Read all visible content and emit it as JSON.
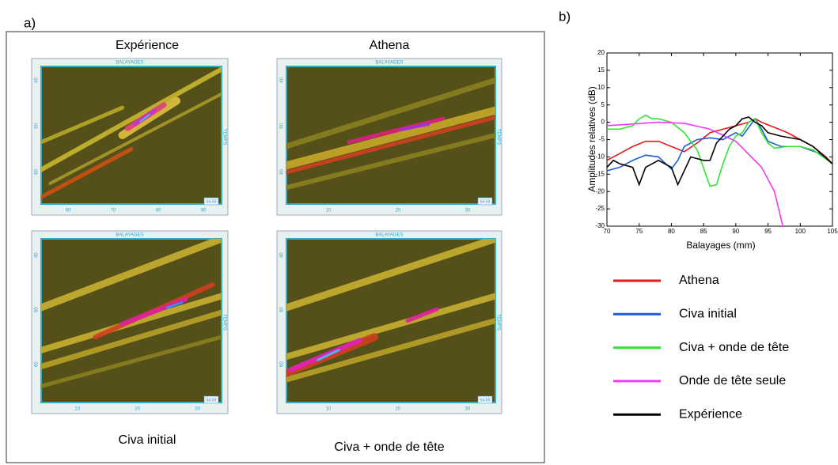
{
  "panel_a": {
    "label": "a)",
    "panels": [
      {
        "title": "Expérience",
        "top_label": "BALAYAGES",
        "side_label": "TEMPS",
        "xticks": [
          60,
          70,
          80,
          90
        ],
        "yticks": [
          40,
          50,
          60
        ],
        "corner": "64.59"
      },
      {
        "title": "Athena",
        "top_label": "BALAYAGES",
        "side_label": "TEMPS",
        "xticks": [
          10,
          20,
          30
        ],
        "yticks": [
          40,
          50,
          60
        ],
        "corner": "64.59"
      },
      {
        "title": "Civa initial",
        "top_label": "BALAYAGES",
        "side_label": "TEMPS",
        "xticks": [
          10,
          20,
          30
        ],
        "yticks": [
          40,
          50,
          60
        ],
        "corner": "64.59"
      },
      {
        "title": "Civa + onde de tête",
        "top_label": "BALAYAGES",
        "side_label": "TEMPS",
        "xticks": [
          10,
          20,
          30
        ],
        "yticks": [
          40,
          50,
          60
        ],
        "corner": "64.59"
      }
    ]
  },
  "chart_data": {
    "type": "line",
    "label": "b)",
    "x_label": "Balayages (mm)",
    "y_label": "Amplitudes relatives (dB)",
    "xlim": [
      70,
      105
    ],
    "ylim": [
      -30,
      20
    ],
    "xticks": [
      70,
      75,
      80,
      85,
      90,
      95,
      100,
      105
    ],
    "yticks": [
      -30,
      -25,
      -20,
      -15,
      -10,
      -5,
      0,
      5,
      10,
      15,
      20
    ],
    "grid": false,
    "series": [
      {
        "name": "Athena",
        "color": "#e31a1c",
        "x": [
          70,
          72,
          74,
          76,
          78,
          80,
          82,
          84,
          86,
          88,
          90,
          92,
          93,
          94,
          96,
          98,
          100,
          102,
          104,
          105
        ],
        "values": [
          -11,
          -9,
          -7,
          -5.5,
          -5.5,
          -7,
          -8.5,
          -6,
          -3,
          -2,
          -1,
          0,
          1,
          0,
          -1.5,
          -3,
          -5,
          -7,
          -10,
          -12
        ]
      },
      {
        "name": "Civa initial",
        "color": "#1f5fd6",
        "x": [
          70,
          72,
          74,
          76,
          78,
          80,
          81,
          82,
          84,
          86,
          88,
          90,
          91,
          93,
          94,
          95,
          97,
          100,
          103,
          105
        ],
        "values": [
          -14,
          -13,
          -11,
          -9.5,
          -10,
          -13.5,
          -11,
          -7,
          -5,
          -4.5,
          -5,
          -3,
          -4,
          1,
          -2,
          -5.5,
          -7,
          -7,
          -9,
          -12
        ]
      },
      {
        "name": "Civa + onde de tête",
        "color": "#33e633",
        "x": [
          70,
          72,
          74,
          75,
          76,
          77,
          78,
          80,
          82,
          84,
          86,
          87,
          88,
          89,
          90,
          91,
          92,
          93,
          94,
          95,
          96,
          98,
          100,
          102,
          105
        ],
        "values": [
          -2,
          -2,
          -1,
          1,
          2,
          1,
          1,
          0,
          -3,
          -8,
          -18.5,
          -18,
          -12,
          -7,
          -4,
          -3,
          0,
          1,
          -3,
          -6,
          -7.5,
          -7,
          -7,
          -8,
          -12
        ]
      },
      {
        "name": "Onde de tête seule",
        "color": "#f03cf0",
        "x": [
          70,
          74,
          78,
          82,
          86,
          90,
          94,
          96,
          97.3
        ],
        "values": [
          -1,
          -0.5,
          0,
          -0.3,
          -2,
          -5.5,
          -13,
          -20,
          -30
        ]
      },
      {
        "name": "Expérience",
        "color": "#000000",
        "x": [
          70,
          71,
          72,
          74,
          75,
          76,
          78,
          80,
          81,
          82,
          83,
          84,
          85,
          86,
          87,
          89,
          90,
          91,
          92,
          93,
          94,
          95,
          97,
          100,
          102,
          105
        ],
        "values": [
          -13,
          -11,
          -12,
          -13,
          -18,
          -13,
          -11,
          -13,
          -18,
          -14,
          -10,
          -10.5,
          -11,
          -11,
          -6,
          -2,
          -1,
          1,
          1.5,
          0,
          -1,
          -3,
          -4,
          -5,
          -7,
          -12
        ]
      }
    ]
  }
}
